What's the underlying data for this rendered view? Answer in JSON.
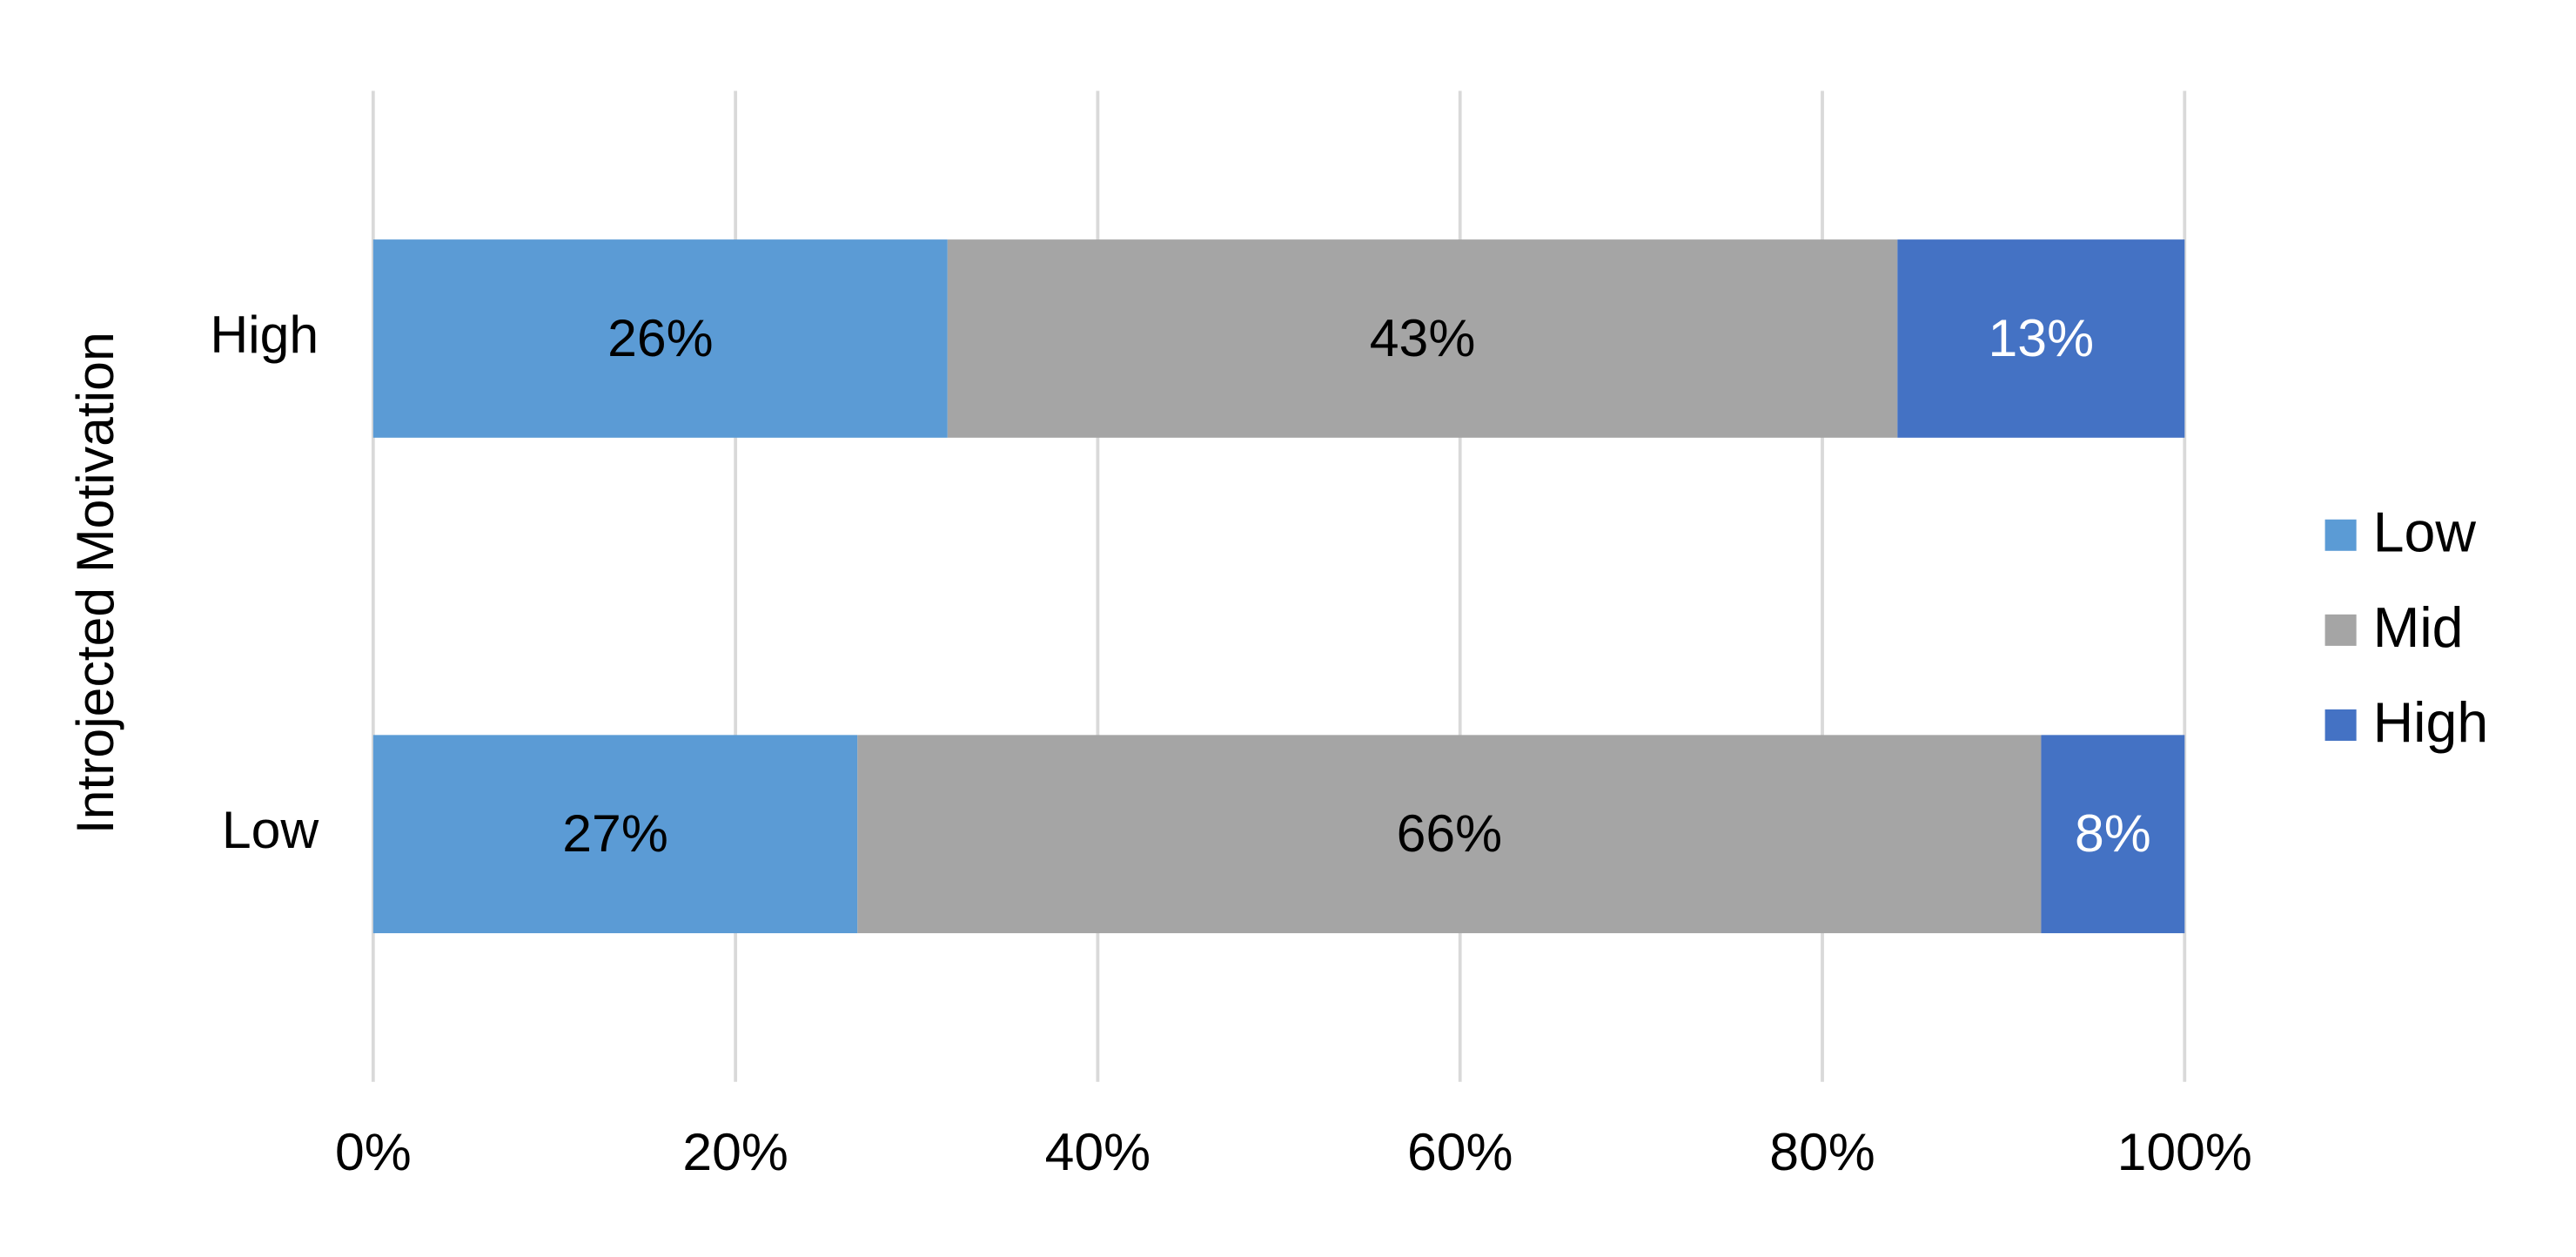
{
  "chart_data": {
    "type": "bar",
    "orientation": "horizontal",
    "stacking": "percent",
    "y_label": "Introjected Motivation",
    "categories": [
      "High",
      "Low"
    ],
    "series": [
      {
        "name": "Low",
        "color": "#5b9bd5",
        "label_color": "#000000",
        "values": [
          26,
          27
        ],
        "value_labels": [
          "26%",
          "27%"
        ]
      },
      {
        "name": "Mid",
        "color": "#a5a5a5",
        "label_color": "#000000",
        "values": [
          43,
          66
        ],
        "value_labels": [
          "43%",
          "66%"
        ]
      },
      {
        "name": "High",
        "color": "#4472c4",
        "label_color": "#ffffff",
        "values": [
          13,
          8
        ],
        "value_labels": [
          "13%",
          "8%"
        ]
      }
    ],
    "xlim": [
      0,
      100
    ],
    "xticks": [
      {
        "value": 0,
        "label": "0%"
      },
      {
        "value": 20,
        "label": "20%"
      },
      {
        "value": 40,
        "label": "40%"
      },
      {
        "value": 60,
        "label": "60%"
      },
      {
        "value": 80,
        "label": "80%"
      },
      {
        "value": 100,
        "label": "100%"
      }
    ],
    "grid": true,
    "legend": "right"
  }
}
